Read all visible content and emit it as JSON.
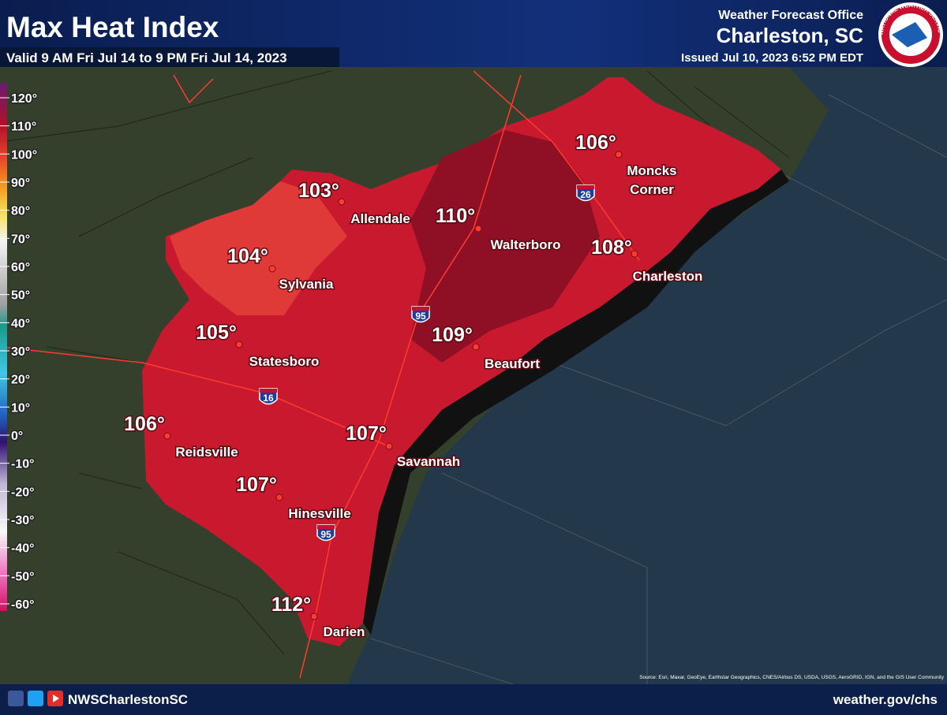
{
  "header": {
    "title": "Max Heat Index",
    "valid": "Valid 9 AM Fri Jul 14 to 9 PM Fri Jul 14, 2023",
    "office": "Weather Forecast Office",
    "location": "Charleston, SC",
    "issued": "Issued Jul 10, 2023 6:52 PM EDT",
    "logo_text": "NATIONAL WEATHER SERVICE"
  },
  "legend": {
    "labels": [
      "120°",
      "110°",
      "100°",
      "90°",
      "80°",
      "70°",
      "60°",
      "50°",
      "40°",
      "30°",
      "20°",
      "10°",
      "0°",
      "-10°",
      "-20°",
      "-30°",
      "-40°",
      "-50°",
      "-60°"
    ]
  },
  "cities": [
    {
      "temp": "106°",
      "name": "Moncks Corner"
    },
    {
      "temp": "103°",
      "name": "Allendale"
    },
    {
      "temp": "110°",
      "name": "Walterboro"
    },
    {
      "temp": "104°",
      "name": "Sylvania"
    },
    {
      "temp": "108°",
      "name": "Charleston"
    },
    {
      "temp": "105°",
      "name": "Statesboro"
    },
    {
      "temp": "109°",
      "name": "Beaufort"
    },
    {
      "temp": "106°",
      "name": "Reidsville"
    },
    {
      "temp": "107°",
      "name": "Savannah"
    },
    {
      "temp": "107°",
      "name": "Hinesville"
    },
    {
      "temp": "112°",
      "name": "Darien"
    }
  ],
  "highways": [
    "26",
    "95",
    "16",
    "95"
  ],
  "source": "Source: Esri, Maxar, GeoEye, Earthstar Geographics, CNES/Airbus DS, USDA, USGS, AeroGRID, IGN, and the GIS User Community",
  "footer": {
    "handle": "NWSCharlestonSC",
    "url": "weather.gov/chs"
  }
}
